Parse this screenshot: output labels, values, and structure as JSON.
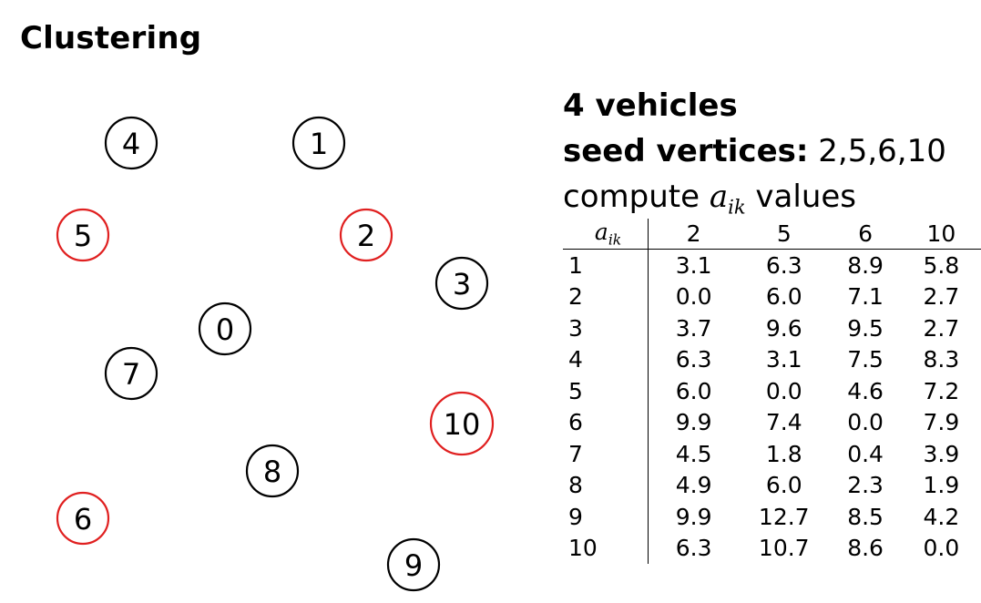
{
  "title": "Clustering",
  "info": {
    "vehicles": "4 vehicles",
    "seed_label": "seed vertices:",
    "seed_values": "2,5,6,10",
    "compute_prefix": "compute",
    "compute_var": "a",
    "compute_sub": "ik",
    "compute_suffix": "values"
  },
  "colors": {
    "seed": "#e02020",
    "normal": "#000000"
  },
  "graph": {
    "nodes": [
      {
        "label": "4",
        "seed": false
      },
      {
        "label": "1",
        "seed": false
      },
      {
        "label": "5",
        "seed": true
      },
      {
        "label": "2",
        "seed": true
      },
      {
        "label": "3",
        "seed": false
      },
      {
        "label": "0",
        "seed": false
      },
      {
        "label": "7",
        "seed": false
      },
      {
        "label": "10",
        "seed": true
      },
      {
        "label": "8",
        "seed": false
      },
      {
        "label": "6",
        "seed": true
      },
      {
        "label": "9",
        "seed": false
      }
    ]
  },
  "table": {
    "header_var": "a",
    "header_sub": "ik",
    "columns": [
      "2",
      "5",
      "6",
      "10"
    ],
    "rows": [
      {
        "k": "1",
        "v": [
          "3.1",
          "6.3",
          "8.9",
          "5.8"
        ]
      },
      {
        "k": "2",
        "v": [
          "0.0",
          "6.0",
          "7.1",
          "2.7"
        ]
      },
      {
        "k": "3",
        "v": [
          "3.7",
          "9.6",
          "9.5",
          "2.7"
        ]
      },
      {
        "k": "4",
        "v": [
          "6.3",
          "3.1",
          "7.5",
          "8.3"
        ]
      },
      {
        "k": "5",
        "v": [
          "6.0",
          "0.0",
          "4.6",
          "7.2"
        ]
      },
      {
        "k": "6",
        "v": [
          "9.9",
          "7.4",
          "0.0",
          "7.9"
        ]
      },
      {
        "k": "7",
        "v": [
          "4.5",
          "1.8",
          "0.4",
          "3.9"
        ]
      },
      {
        "k": "8",
        "v": [
          "4.9",
          "6.0",
          "2.3",
          "1.9"
        ]
      },
      {
        "k": "9",
        "v": [
          "9.9",
          "12.7",
          "8.5",
          "4.2"
        ]
      },
      {
        "k": "10",
        "v": [
          "6.3",
          "10.7",
          "8.6",
          "0.0"
        ]
      }
    ]
  }
}
